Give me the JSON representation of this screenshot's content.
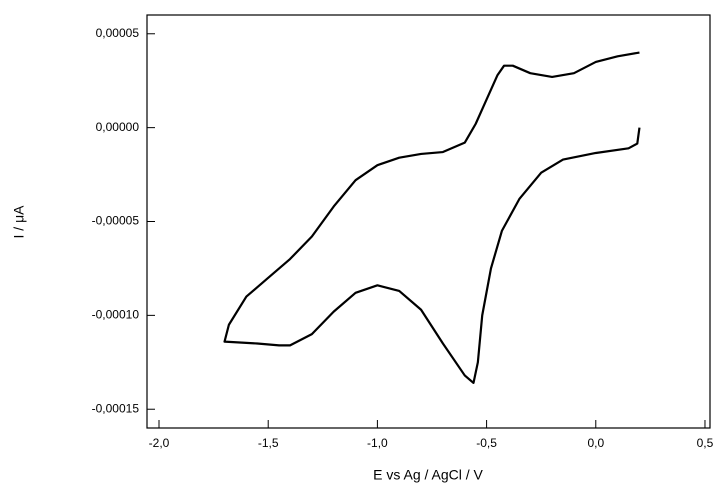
{
  "chart_data": {
    "type": "line",
    "x_label": "E vs Ag / AgCl / V",
    "y_label": "I / μA",
    "xlim": [
      -2.055,
      0.523
    ],
    "ylim": [
      -0.00016,
      6e-05
    ],
    "xticks": [
      {
        "value": -2,
        "label": "-2,0"
      },
      {
        "value": -1.5,
        "label": "-1,5"
      },
      {
        "value": -1,
        "label": "-1,0"
      },
      {
        "value": -0.5,
        "label": "-0,5"
      },
      {
        "value": 0,
        "label": "0,0"
      },
      {
        "value": 0.5,
        "label": "0,5"
      }
    ],
    "yticks": [
      {
        "value": 5e-05,
        "label": "0,00005"
      },
      {
        "value": 0,
        "label": "0,00000"
      },
      {
        "value": -5e-05,
        "label": "-0,00005"
      },
      {
        "value": -0.0001,
        "label": "-0,00010"
      },
      {
        "value": -0.00015,
        "label": "-0,00015"
      }
    ],
    "grid": false,
    "series": [
      {
        "color": "#000000",
        "x": [
          0.2,
          0.19,
          0.15,
          0.0,
          -0.15,
          -0.25,
          -0.35,
          -0.43,
          -0.48,
          -0.52,
          -0.54,
          -0.56,
          -0.6,
          -0.7,
          -0.8,
          -0.9,
          -1.0,
          -1.1,
          -1.2,
          -1.3,
          -1.4,
          -1.45,
          -1.55,
          -1.7,
          -1.68,
          -1.6,
          -1.5,
          -1.4,
          -1.3,
          -1.2,
          -1.1,
          -1.0,
          -0.9,
          -0.8,
          -0.7,
          -0.6,
          -0.55,
          -0.5,
          -0.45,
          -0.42,
          -0.38,
          -0.3,
          -0.2,
          -0.1,
          0.0,
          0.1,
          0.2
        ],
        "values": [
          0,
          -8.5e-06,
          -1.1e-05,
          -1.35e-05,
          -1.7e-05,
          -2.4e-05,
          -3.8e-05,
          -5.5e-05,
          -7.5e-05,
          -0.0001,
          -0.000125,
          -0.000136,
          -0.000132,
          -0.000115,
          -9.7e-05,
          -8.7e-05,
          -8.4e-05,
          -8.8e-05,
          -9.8e-05,
          -0.00011,
          -0.000116,
          -0.000116,
          -0.000115,
          -0.000114,
          -0.000105,
          -9e-05,
          -8e-05,
          -7e-05,
          -5.8e-05,
          -4.2e-05,
          -2.8e-05,
          -2e-05,
          -1.6e-05,
          -1.4e-05,
          -1.3e-05,
          -8e-06,
          2e-06,
          1.5e-05,
          2.8e-05,
          3.3e-05,
          3.3e-05,
          2.9e-05,
          2.7e-05,
          2.9e-05,
          3.5e-05,
          3.8e-05,
          4e-05
        ]
      }
    ]
  }
}
